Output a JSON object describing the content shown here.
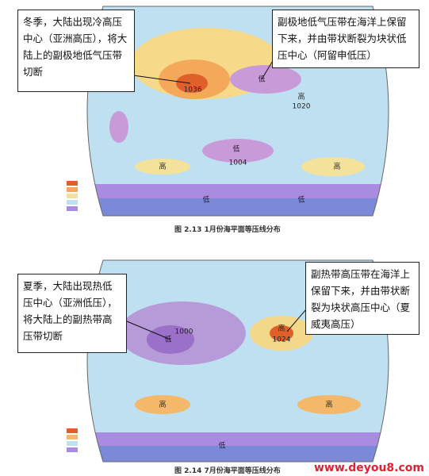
{
  "maps": [
    {
      "callouts": [
        "冬季，大陆出现冷高压中心（亚洲高压），将大陆上的副极地低气压带切断",
        "副极地低气压带在海洋上保留下来，并由带状断裂为块状低压中心（阿留申低压）"
      ],
      "caption": "图 2.13  1月份海平面等压线分布",
      "labels": [
        "1036",
        "低",
        "高",
        "1020",
        "低",
        "1004",
        "高",
        "高",
        "低",
        "低"
      ]
    },
    {
      "callouts": [
        "夏季，大陆出现热低压中心（亚洲低压），将大陆上的副热带高压带切断",
        "副热带高压带在海洋上保留下来，并由带状断裂为块状高压中心（夏威夷高压）"
      ],
      "caption": "图 2.14  7月份海平面等压线分布",
      "labels": [
        "低",
        "1000",
        "高",
        "1024",
        "高",
        "高",
        "低"
      ]
    }
  ],
  "watermark": "www.deyou8.com"
}
